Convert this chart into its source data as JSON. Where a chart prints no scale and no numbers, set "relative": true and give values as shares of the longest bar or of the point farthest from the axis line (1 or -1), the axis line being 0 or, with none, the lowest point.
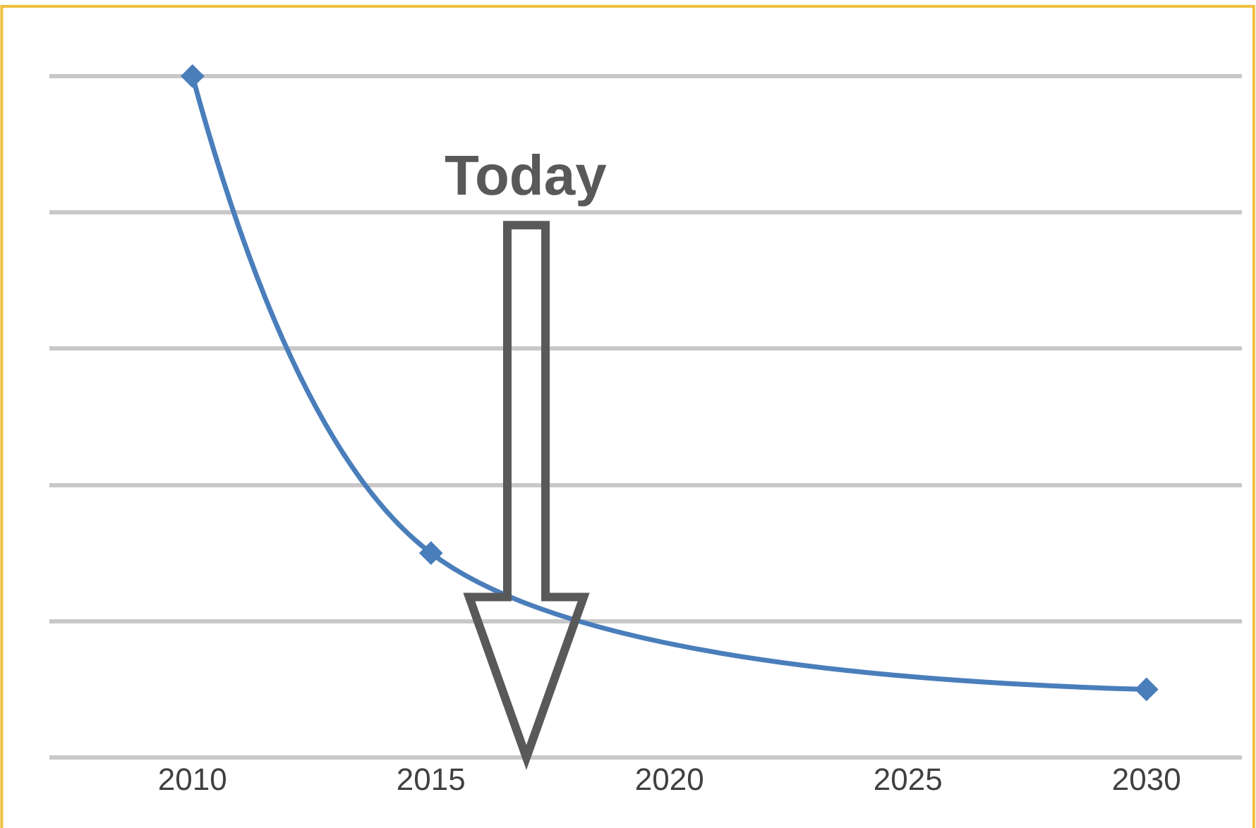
{
  "chart_data": {
    "type": "line",
    "relative": true,
    "x": [
      2010,
      2015,
      2030
    ],
    "series": [
      {
        "color": "#4a7ebb",
        "values": [
          1,
          0.3,
          0.1
        ]
      }
    ],
    "xlim": [
      2007,
      2032
    ],
    "xticks": [
      2010,
      2015,
      2020,
      2025,
      2030
    ],
    "marker": "diamond",
    "line_style": "solid",
    "grid": "y",
    "legend": false,
    "annotations": [
      "Today"
    ]
  }
}
